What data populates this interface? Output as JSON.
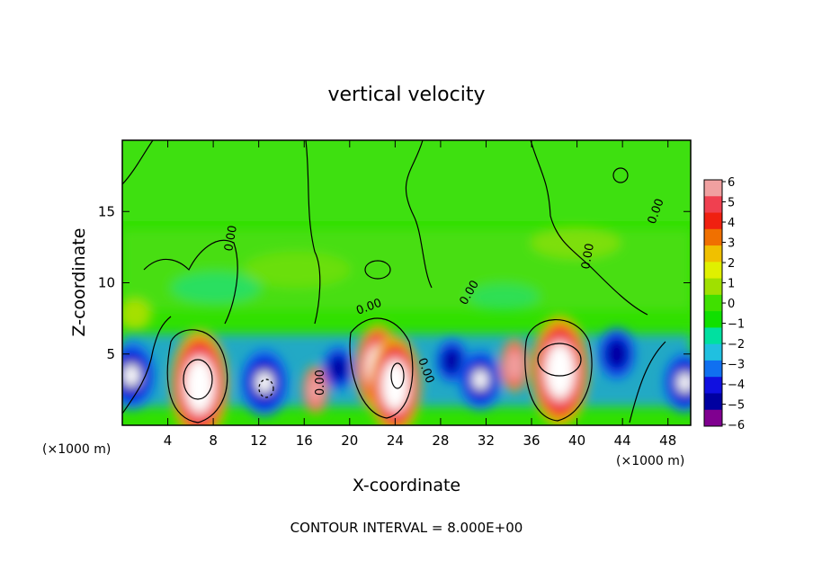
{
  "chart_data": {
    "type": "heatmap",
    "title": "vertical velocity",
    "xlabel": "X-coordinate",
    "ylabel": "Z-coordinate",
    "x_units_label": "(×1000 m)",
    "x_units_label_right": "(×1000 m)",
    "xlim": [
      0,
      50
    ],
    "ylim": [
      0,
      20
    ],
    "x_ticks": [
      "4",
      "8",
      "12",
      "16",
      "20",
      "24",
      "28",
      "32",
      "36",
      "40",
      "44",
      "48"
    ],
    "y_ticks": [
      "5",
      "10",
      "15"
    ],
    "colorbar": {
      "levels": [
        "6",
        "5",
        "4",
        "3",
        "2",
        "1",
        "0",
        "−1",
        "−2",
        "−3",
        "−4",
        "−5",
        "−6"
      ],
      "colors": [
        "#f0a0a0",
        "#f04050",
        "#f02010",
        "#f07000",
        "#f0c000",
        "#e0f000",
        "#a0e000",
        "#40e000",
        "#10e000",
        "#00e0a0",
        "#20c0e0",
        "#1070f0",
        "#1010e0",
        "#0000a0",
        "#800090"
      ]
    },
    "contour_interval_text": "CONTOUR INTERVAL =  8.000E+00",
    "contour_labels": [
      "0.00",
      "0.00",
      "0.00",
      "0.00",
      "0.00",
      "0.00",
      "0.00"
    ],
    "updraft_cores": [
      {
        "x": 6.8,
        "z": 2.8,
        "w": 9
      },
      {
        "x": 22.5,
        "z": 4.0,
        "w": 7
      },
      {
        "x": 24.0,
        "z": 2.8,
        "w": 8
      },
      {
        "x": 38.5,
        "z": 3.8,
        "w": 9
      },
      {
        "x": 17.0,
        "z": 2.5,
        "w": 3.5
      },
      {
        "x": 34.5,
        "z": 4.2,
        "w": 4
      }
    ],
    "downdraft_cores": [
      {
        "x": 0.8,
        "z": 3.5,
        "w": -8
      },
      {
        "x": 12.5,
        "z": 3.0,
        "w": -8
      },
      {
        "x": 19.0,
        "z": 4.0,
        "w": -5
      },
      {
        "x": 29.0,
        "z": 4.5,
        "w": -5
      },
      {
        "x": 31.5,
        "z": 3.2,
        "w": -7
      },
      {
        "x": 43.5,
        "z": 5.0,
        "w": -6
      },
      {
        "x": 49.5,
        "z": 3.0,
        "w": -7
      }
    ]
  }
}
